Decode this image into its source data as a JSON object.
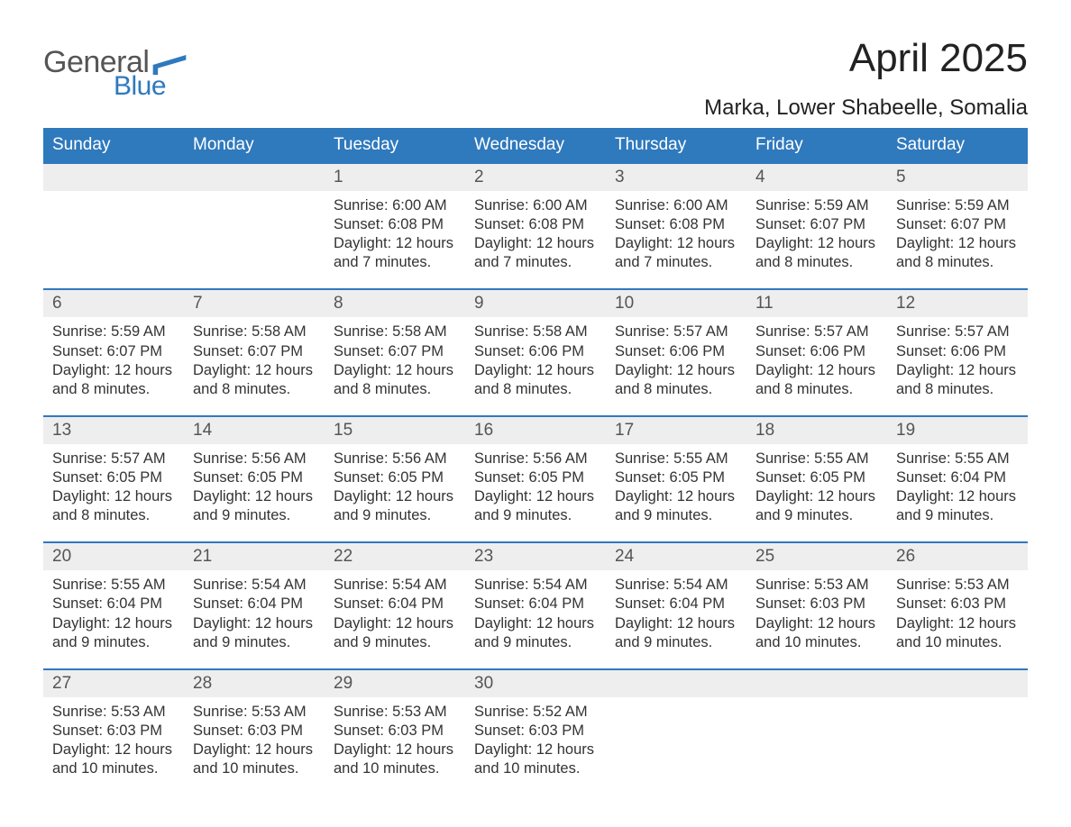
{
  "colors": {
    "header_blue": "#2f79bd",
    "row_gray": "#eeeeee",
    "divider_blue": "#2f79bd",
    "text_dark": "#333333",
    "logo_gray": "#555555",
    "logo_blue": "#2f79bd",
    "background": "#ffffff"
  },
  "typography": {
    "month_title_size": 44,
    "location_size": 24,
    "weekday_size": 19,
    "daynum_size": 19,
    "body_size": 16.5,
    "font_family": "Arial, Helvetica, sans-serif"
  },
  "logo": {
    "text1": "General",
    "text2": "Blue"
  },
  "title": "April 2025",
  "location": "Marka, Lower Shabeelle, Somalia",
  "weekdays": [
    "Sunday",
    "Monday",
    "Tuesday",
    "Wednesday",
    "Thursday",
    "Friday",
    "Saturday"
  ],
  "labels": {
    "sunrise": "Sunrise:",
    "sunset": "Sunset:",
    "daylight": "Daylight:"
  },
  "weeks": [
    [
      null,
      null,
      {
        "n": "1",
        "sunrise": "6:00 AM",
        "sunset": "6:08 PM",
        "daylight": "12 hours and 7 minutes."
      },
      {
        "n": "2",
        "sunrise": "6:00 AM",
        "sunset": "6:08 PM",
        "daylight": "12 hours and 7 minutes."
      },
      {
        "n": "3",
        "sunrise": "6:00 AM",
        "sunset": "6:08 PM",
        "daylight": "12 hours and 7 minutes."
      },
      {
        "n": "4",
        "sunrise": "5:59 AM",
        "sunset": "6:07 PM",
        "daylight": "12 hours and 8 minutes."
      },
      {
        "n": "5",
        "sunrise": "5:59 AM",
        "sunset": "6:07 PM",
        "daylight": "12 hours and 8 minutes."
      }
    ],
    [
      {
        "n": "6",
        "sunrise": "5:59 AM",
        "sunset": "6:07 PM",
        "daylight": "12 hours and 8 minutes."
      },
      {
        "n": "7",
        "sunrise": "5:58 AM",
        "sunset": "6:07 PM",
        "daylight": "12 hours and 8 minutes."
      },
      {
        "n": "8",
        "sunrise": "5:58 AM",
        "sunset": "6:07 PM",
        "daylight": "12 hours and 8 minutes."
      },
      {
        "n": "9",
        "sunrise": "5:58 AM",
        "sunset": "6:06 PM",
        "daylight": "12 hours and 8 minutes."
      },
      {
        "n": "10",
        "sunrise": "5:57 AM",
        "sunset": "6:06 PM",
        "daylight": "12 hours and 8 minutes."
      },
      {
        "n": "11",
        "sunrise": "5:57 AM",
        "sunset": "6:06 PM",
        "daylight": "12 hours and 8 minutes."
      },
      {
        "n": "12",
        "sunrise": "5:57 AM",
        "sunset": "6:06 PM",
        "daylight": "12 hours and 8 minutes."
      }
    ],
    [
      {
        "n": "13",
        "sunrise": "5:57 AM",
        "sunset": "6:05 PM",
        "daylight": "12 hours and 8 minutes."
      },
      {
        "n": "14",
        "sunrise": "5:56 AM",
        "sunset": "6:05 PM",
        "daylight": "12 hours and 9 minutes."
      },
      {
        "n": "15",
        "sunrise": "5:56 AM",
        "sunset": "6:05 PM",
        "daylight": "12 hours and 9 minutes."
      },
      {
        "n": "16",
        "sunrise": "5:56 AM",
        "sunset": "6:05 PM",
        "daylight": "12 hours and 9 minutes."
      },
      {
        "n": "17",
        "sunrise": "5:55 AM",
        "sunset": "6:05 PM",
        "daylight": "12 hours and 9 minutes."
      },
      {
        "n": "18",
        "sunrise": "5:55 AM",
        "sunset": "6:05 PM",
        "daylight": "12 hours and 9 minutes."
      },
      {
        "n": "19",
        "sunrise": "5:55 AM",
        "sunset": "6:04 PM",
        "daylight": "12 hours and 9 minutes."
      }
    ],
    [
      {
        "n": "20",
        "sunrise": "5:55 AM",
        "sunset": "6:04 PM",
        "daylight": "12 hours and 9 minutes."
      },
      {
        "n": "21",
        "sunrise": "5:54 AM",
        "sunset": "6:04 PM",
        "daylight": "12 hours and 9 minutes."
      },
      {
        "n": "22",
        "sunrise": "5:54 AM",
        "sunset": "6:04 PM",
        "daylight": "12 hours and 9 minutes."
      },
      {
        "n": "23",
        "sunrise": "5:54 AM",
        "sunset": "6:04 PM",
        "daylight": "12 hours and 9 minutes."
      },
      {
        "n": "24",
        "sunrise": "5:54 AM",
        "sunset": "6:04 PM",
        "daylight": "12 hours and 9 minutes."
      },
      {
        "n": "25",
        "sunrise": "5:53 AM",
        "sunset": "6:03 PM",
        "daylight": "12 hours and 10 minutes."
      },
      {
        "n": "26",
        "sunrise": "5:53 AM",
        "sunset": "6:03 PM",
        "daylight": "12 hours and 10 minutes."
      }
    ],
    [
      {
        "n": "27",
        "sunrise": "5:53 AM",
        "sunset": "6:03 PM",
        "daylight": "12 hours and 10 minutes."
      },
      {
        "n": "28",
        "sunrise": "5:53 AM",
        "sunset": "6:03 PM",
        "daylight": "12 hours and 10 minutes."
      },
      {
        "n": "29",
        "sunrise": "5:53 AM",
        "sunset": "6:03 PM",
        "daylight": "12 hours and 10 minutes."
      },
      {
        "n": "30",
        "sunrise": "5:52 AM",
        "sunset": "6:03 PM",
        "daylight": "12 hours and 10 minutes."
      },
      null,
      null,
      null
    ]
  ]
}
